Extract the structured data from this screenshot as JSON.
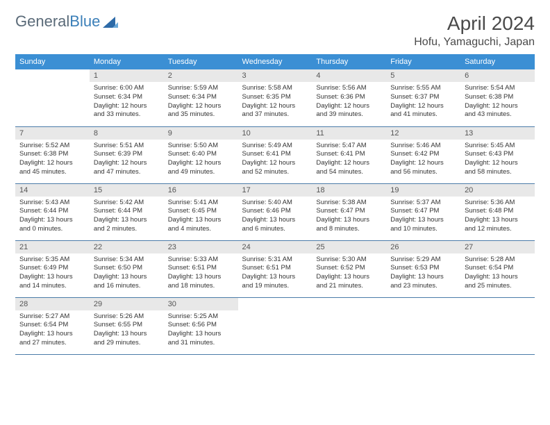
{
  "logo": {
    "text1": "General",
    "text2": "Blue"
  },
  "title": "April 2024",
  "location": "Hofu, Yamaguchi, Japan",
  "colors": {
    "headerBg": "#3b8fd4",
    "headerFg": "#ffffff",
    "dayBg": "#e8e8e8",
    "border": "#4a7ba8",
    "text": "#333333",
    "titleColor": "#4a4a4a"
  },
  "dayNames": [
    "Sunday",
    "Monday",
    "Tuesday",
    "Wednesday",
    "Thursday",
    "Friday",
    "Saturday"
  ],
  "weeks": [
    [
      null,
      {
        "n": "1",
        "sr": "6:00 AM",
        "ss": "6:34 PM",
        "dl": "12 hours and 33 minutes."
      },
      {
        "n": "2",
        "sr": "5:59 AM",
        "ss": "6:34 PM",
        "dl": "12 hours and 35 minutes."
      },
      {
        "n": "3",
        "sr": "5:58 AM",
        "ss": "6:35 PM",
        "dl": "12 hours and 37 minutes."
      },
      {
        "n": "4",
        "sr": "5:56 AM",
        "ss": "6:36 PM",
        "dl": "12 hours and 39 minutes."
      },
      {
        "n": "5",
        "sr": "5:55 AM",
        "ss": "6:37 PM",
        "dl": "12 hours and 41 minutes."
      },
      {
        "n": "6",
        "sr": "5:54 AM",
        "ss": "6:38 PM",
        "dl": "12 hours and 43 minutes."
      }
    ],
    [
      {
        "n": "7",
        "sr": "5:52 AM",
        "ss": "6:38 PM",
        "dl": "12 hours and 45 minutes."
      },
      {
        "n": "8",
        "sr": "5:51 AM",
        "ss": "6:39 PM",
        "dl": "12 hours and 47 minutes."
      },
      {
        "n": "9",
        "sr": "5:50 AM",
        "ss": "6:40 PM",
        "dl": "12 hours and 49 minutes."
      },
      {
        "n": "10",
        "sr": "5:49 AM",
        "ss": "6:41 PM",
        "dl": "12 hours and 52 minutes."
      },
      {
        "n": "11",
        "sr": "5:47 AM",
        "ss": "6:41 PM",
        "dl": "12 hours and 54 minutes."
      },
      {
        "n": "12",
        "sr": "5:46 AM",
        "ss": "6:42 PM",
        "dl": "12 hours and 56 minutes."
      },
      {
        "n": "13",
        "sr": "5:45 AM",
        "ss": "6:43 PM",
        "dl": "12 hours and 58 minutes."
      }
    ],
    [
      {
        "n": "14",
        "sr": "5:43 AM",
        "ss": "6:44 PM",
        "dl": "13 hours and 0 minutes."
      },
      {
        "n": "15",
        "sr": "5:42 AM",
        "ss": "6:44 PM",
        "dl": "13 hours and 2 minutes."
      },
      {
        "n": "16",
        "sr": "5:41 AM",
        "ss": "6:45 PM",
        "dl": "13 hours and 4 minutes."
      },
      {
        "n": "17",
        "sr": "5:40 AM",
        "ss": "6:46 PM",
        "dl": "13 hours and 6 minutes."
      },
      {
        "n": "18",
        "sr": "5:38 AM",
        "ss": "6:47 PM",
        "dl": "13 hours and 8 minutes."
      },
      {
        "n": "19",
        "sr": "5:37 AM",
        "ss": "6:47 PM",
        "dl": "13 hours and 10 minutes."
      },
      {
        "n": "20",
        "sr": "5:36 AM",
        "ss": "6:48 PM",
        "dl": "13 hours and 12 minutes."
      }
    ],
    [
      {
        "n": "21",
        "sr": "5:35 AM",
        "ss": "6:49 PM",
        "dl": "13 hours and 14 minutes."
      },
      {
        "n": "22",
        "sr": "5:34 AM",
        "ss": "6:50 PM",
        "dl": "13 hours and 16 minutes."
      },
      {
        "n": "23",
        "sr": "5:33 AM",
        "ss": "6:51 PM",
        "dl": "13 hours and 18 minutes."
      },
      {
        "n": "24",
        "sr": "5:31 AM",
        "ss": "6:51 PM",
        "dl": "13 hours and 19 minutes."
      },
      {
        "n": "25",
        "sr": "5:30 AM",
        "ss": "6:52 PM",
        "dl": "13 hours and 21 minutes."
      },
      {
        "n": "26",
        "sr": "5:29 AM",
        "ss": "6:53 PM",
        "dl": "13 hours and 23 minutes."
      },
      {
        "n": "27",
        "sr": "5:28 AM",
        "ss": "6:54 PM",
        "dl": "13 hours and 25 minutes."
      }
    ],
    [
      {
        "n": "28",
        "sr": "5:27 AM",
        "ss": "6:54 PM",
        "dl": "13 hours and 27 minutes."
      },
      {
        "n": "29",
        "sr": "5:26 AM",
        "ss": "6:55 PM",
        "dl": "13 hours and 29 minutes."
      },
      {
        "n": "30",
        "sr": "5:25 AM",
        "ss": "6:56 PM",
        "dl": "13 hours and 31 minutes."
      },
      null,
      null,
      null,
      null
    ]
  ],
  "labels": {
    "sunrise": "Sunrise:",
    "sunset": "Sunset:",
    "daylight": "Daylight:"
  }
}
